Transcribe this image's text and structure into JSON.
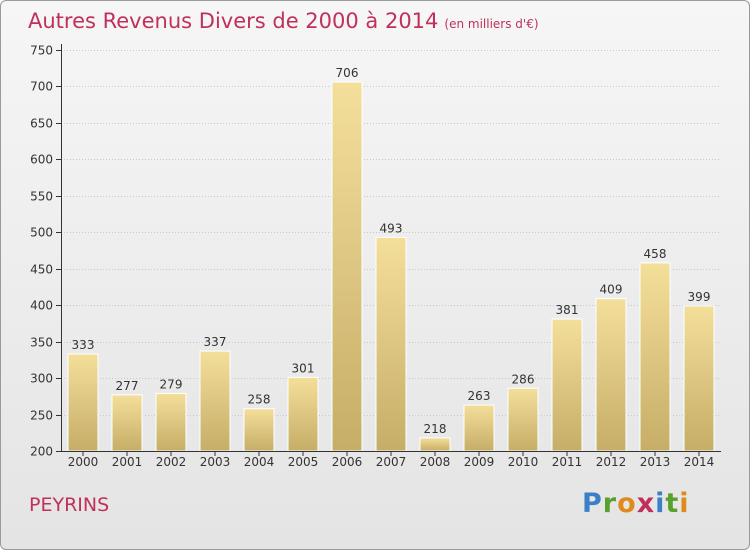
{
  "title": "Autres Revenus Divers de 2000 à 2014",
  "unit": "(en milliers d'€)",
  "commune": "PEYRINS",
  "logo": [
    "P",
    "r",
    "o",
    "x",
    "i",
    "t",
    "i"
  ],
  "chart_data": {
    "type": "bar",
    "title": "Autres Revenus Divers de 2000 à 2014",
    "subtitle": "(en milliers d'€)",
    "categories": [
      "2000",
      "2001",
      "2002",
      "2003",
      "2004",
      "2005",
      "2006",
      "2007",
      "2008",
      "2009",
      "2010",
      "2011",
      "2012",
      "2013",
      "2014"
    ],
    "values": [
      333,
      277,
      279,
      337,
      258,
      301,
      706,
      493,
      218,
      263,
      286,
      381,
      409,
      458,
      399
    ],
    "ylim": [
      200,
      750
    ],
    "yticks": [
      200,
      250,
      300,
      350,
      400,
      450,
      500,
      550,
      600,
      650,
      700,
      750
    ],
    "grid": true,
    "colors": {
      "bar_light": "#f4df9a",
      "bar_dark": "#c6ad68",
      "grid": "#c8c8c8"
    }
  }
}
